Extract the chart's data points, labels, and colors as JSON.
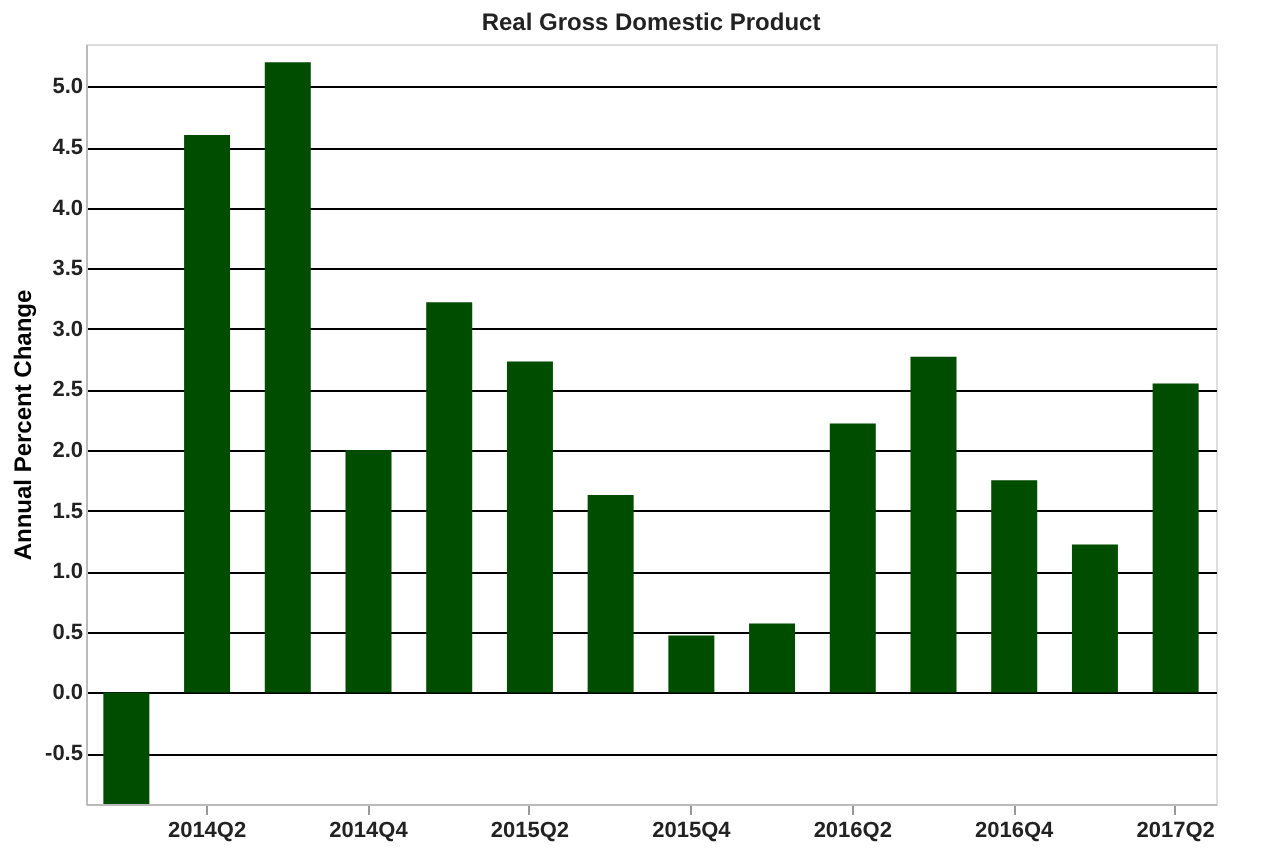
{
  "chart_data": {
    "type": "bar",
    "title": "Real Gross Domestic Product",
    "ylabel": "Annual Percent Change",
    "categories": [
      null,
      "2014Q2",
      null,
      "2014Q4",
      null,
      "2015Q2",
      null,
      "2015Q4",
      null,
      "2016Q2",
      null,
      "2016Q4",
      null,
      "2017Q2"
    ],
    "values": [
      -0.92,
      4.6,
      5.2,
      2.0,
      3.22,
      2.73,
      1.63,
      0.47,
      0.57,
      2.22,
      2.77,
      1.75,
      1.22,
      2.55
    ],
    "color": "#004d00",
    "ylim": [
      -0.92,
      5.35
    ],
    "yticks": [
      -0.5,
      {
        "value": 0,
        "label": "0.0"
      },
      0.5,
      {
        "value": 1,
        "label": "1.0"
      },
      1.5,
      {
        "value": 2,
        "label": "2.0"
      },
      2.5,
      {
        "value": 3,
        "label": "3.0"
      },
      3.5,
      {
        "value": 4,
        "label": "4.0"
      },
      4.5,
      {
        "value": 5,
        "label": "5.0"
      }
    ],
    "grid": "y"
  }
}
